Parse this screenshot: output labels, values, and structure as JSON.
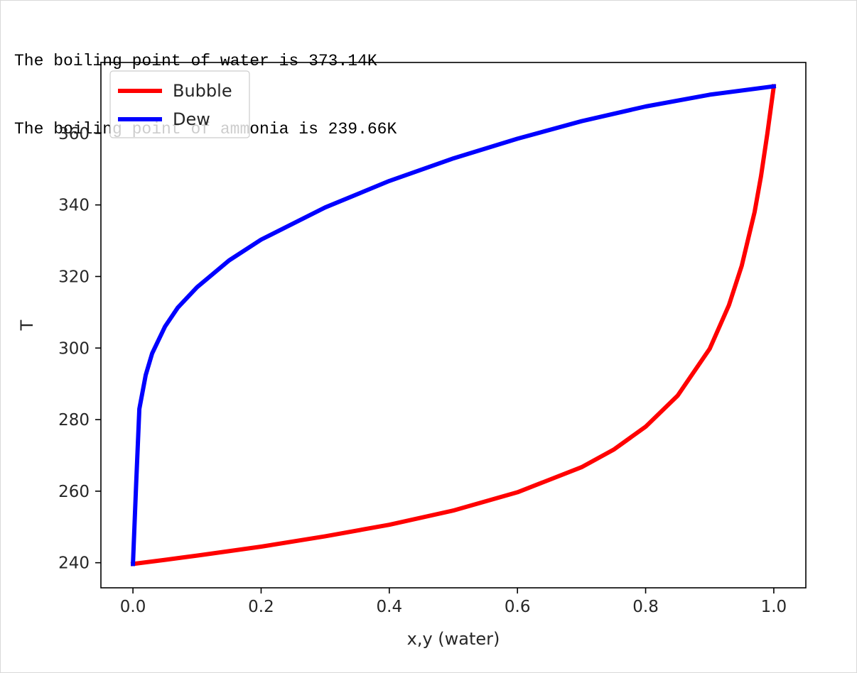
{
  "output": {
    "lines": [
      "The boiling point of water is 373.14K",
      "The boiling point of ammonia is 239.66K"
    ]
  },
  "chart_data": {
    "type": "line",
    "title": "",
    "xlabel": "x,y (water)",
    "ylabel": "T",
    "xlim": [
      -0.05,
      1.05
    ],
    "ylim": [
      232.99,
      379.81
    ],
    "xticks": [
      0.0,
      0.2,
      0.4,
      0.6,
      0.8,
      1.0
    ],
    "xtick_labels": [
      "0.0",
      "0.2",
      "0.4",
      "0.6",
      "0.8",
      "1.0"
    ],
    "yticks": [
      240,
      260,
      280,
      300,
      320,
      340,
      360
    ],
    "ytick_labels": [
      "240",
      "260",
      "280",
      "300",
      "320",
      "340",
      "360"
    ],
    "grid": false,
    "legend_position": "upper-left",
    "series": [
      {
        "name": "Bubble",
        "color": "#ff0000",
        "x": [
          0.0,
          0.05,
          0.1,
          0.2,
          0.3,
          0.4,
          0.5,
          0.6,
          0.7,
          0.75,
          0.8,
          0.85,
          0.9,
          0.93,
          0.95,
          0.97,
          0.98,
          0.99,
          1.0
        ],
        "y": [
          239.66,
          240.8,
          242.0,
          244.5,
          247.4,
          250.6,
          254.6,
          259.7,
          266.7,
          271.6,
          278.0,
          286.7,
          299.8,
          312.0,
          323.0,
          338.0,
          348.0,
          360.0,
          373.14
        ]
      },
      {
        "name": "Dew",
        "color": "#0000ff",
        "x": [
          0.0,
          0.005,
          0.01,
          0.02,
          0.03,
          0.05,
          0.07,
          0.1,
          0.15,
          0.2,
          0.3,
          0.4,
          0.5,
          0.6,
          0.7,
          0.8,
          0.9,
          1.0
        ],
        "y": [
          239.66,
          262.0,
          283.0,
          292.5,
          298.5,
          306.0,
          311.3,
          317.0,
          324.5,
          330.3,
          339.3,
          346.7,
          353.0,
          358.5,
          363.4,
          367.5,
          370.8,
          373.14
        ]
      }
    ]
  }
}
